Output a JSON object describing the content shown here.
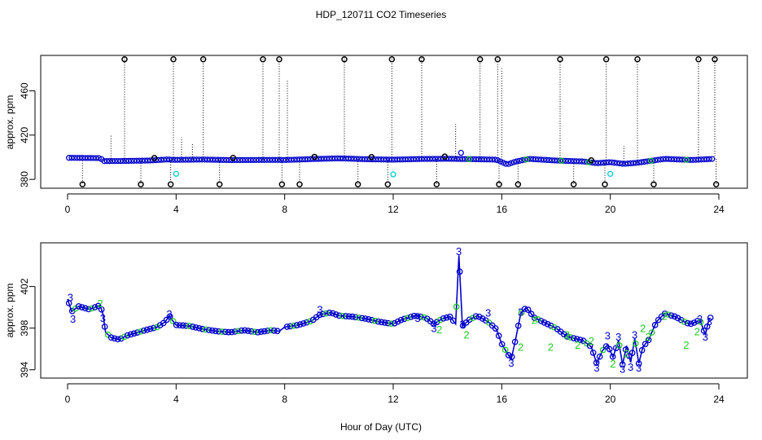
{
  "chart_data": {
    "title": "HDP_120711  CO2 Timeseries",
    "xlabel": "Hour of Day (UTC)",
    "colors": {
      "series_3": "#0000cc",
      "series_2": "#22cc22",
      "outlier": "#000000",
      "outlier_cyan": "#00cccc"
    },
    "panels": [
      {
        "type": "scatter",
        "ylabel": "approx. ppm",
        "xlim": [
          0,
          24
        ],
        "ylim": [
          372,
          492
        ],
        "xticks": [
          "0",
          "4",
          "8",
          "12",
          "16",
          "20",
          "24"
        ],
        "yticks": [
          "380",
          "420",
          "460"
        ],
        "baseline": [
          [
            0,
            399.5
          ],
          [
            1.2,
            399.2
          ],
          [
            1.35,
            396.5
          ],
          [
            2,
            396.6
          ],
          [
            3,
            397
          ],
          [
            3.7,
            398
          ],
          [
            3.9,
            397.6
          ],
          [
            5,
            397.9
          ],
          [
            6,
            397.4
          ],
          [
            7.7,
            397.6
          ],
          [
            8,
            397.5
          ],
          [
            9,
            398.3
          ],
          [
            10,
            399
          ],
          [
            11,
            398.2
          ],
          [
            12,
            397.8
          ],
          [
            13,
            398.4
          ],
          [
            14,
            398.6
          ],
          [
            15,
            398.2
          ],
          [
            15.8,
            397.8
          ],
          [
            16.2,
            393.5
          ],
          [
            16.5,
            396
          ],
          [
            17,
            398.5
          ],
          [
            18,
            397
          ],
          [
            19,
            396.2
          ],
          [
            19.5,
            394.6
          ],
          [
            20,
            395.5
          ],
          [
            20.5,
            394
          ],
          [
            21,
            395
          ],
          [
            22,
            398.5
          ],
          [
            23,
            397.5
          ],
          [
            23.8,
            398.5
          ]
        ],
        "outliers_high": [
          2.1,
          3.9,
          5.0,
          7.2,
          7.8,
          10.2,
          11.95,
          13.05,
          15.2,
          15.85,
          18.15,
          19.85,
          21.0,
          23.25,
          23.85
        ],
        "outliers_low": [
          0.55,
          2.7,
          3.8,
          5.6,
          7.9,
          8.55,
          10.7,
          11.8,
          13.6,
          15.9,
          16.6,
          18.65,
          19.8,
          21.6,
          23.9
        ],
        "outliers_mid": [
          3.2,
          6.1,
          9.1,
          11.2,
          13.9,
          19.3
        ],
        "spike_points": [
          [
            14.5,
            404
          ]
        ],
        "cyan_points": [
          [
            4.0,
            385
          ],
          [
            12.0,
            384.5
          ],
          [
            20.0,
            385
          ]
        ],
        "dotted_spikes": [
          [
            1.6,
            420
          ],
          [
            2.1,
            490
          ],
          [
            3.9,
            490
          ],
          [
            4.2,
            418
          ],
          [
            4.6,
            412
          ],
          [
            5.0,
            490
          ],
          [
            7.2,
            490
          ],
          [
            7.8,
            490
          ],
          [
            8.1,
            470
          ],
          [
            10.2,
            490
          ],
          [
            11.95,
            490
          ],
          [
            13.05,
            490
          ],
          [
            14.3,
            430
          ],
          [
            15.2,
            490
          ],
          [
            15.85,
            490
          ],
          [
            16.0,
            480
          ],
          [
            18.15,
            490
          ],
          [
            19.85,
            490
          ],
          [
            20.5,
            410
          ],
          [
            21.0,
            490
          ],
          [
            23.25,
            490
          ],
          [
            23.85,
            490
          ]
        ]
      },
      {
        "type": "line",
        "ylabel": "approx. ppm",
        "xlim": [
          0,
          24
        ],
        "ylim": [
          393.2,
          406.2
        ],
        "xticks": [
          "0",
          "4",
          "8",
          "12",
          "16",
          "20",
          "24"
        ],
        "yticks": [
          "394",
          "398",
          "402"
        ],
        "marker_label_3": "3",
        "marker_label_2": "2",
        "series": [
          [
            0,
            400.8
          ],
          [
            0.15,
            399.6
          ],
          [
            0.4,
            400.1
          ],
          [
            0.8,
            399.8
          ],
          [
            1.2,
            400.2
          ],
          [
            1.3,
            399.4
          ],
          [
            1.4,
            397.6
          ],
          [
            1.6,
            397.1
          ],
          [
            1.9,
            396.9
          ],
          [
            2.2,
            397.3
          ],
          [
            2.6,
            397.6
          ],
          [
            3.0,
            397.9
          ],
          [
            3.3,
            398.1
          ],
          [
            3.6,
            398.6
          ],
          [
            3.75,
            399.2
          ],
          [
            3.85,
            398.8
          ],
          [
            4.0,
            398.3
          ],
          [
            4.5,
            398.2
          ],
          [
            5.0,
            397.9
          ],
          [
            5.5,
            397.7
          ],
          [
            6.0,
            397.6
          ],
          [
            6.5,
            397.8
          ],
          [
            7.0,
            397.6
          ],
          [
            7.5,
            397.8
          ],
          [
            7.8,
            397.7
          ],
          [
            8.0,
            398.1
          ],
          [
            8.5,
            398.3
          ],
          [
            9.0,
            398.7
          ],
          [
            9.3,
            399.3
          ],
          [
            9.7,
            399.5
          ],
          [
            10.0,
            399.2
          ],
          [
            10.5,
            399.1
          ],
          [
            11.0,
            398.9
          ],
          [
            11.5,
            398.6
          ],
          [
            12.0,
            398.4
          ],
          [
            12.3,
            398.8
          ],
          [
            12.8,
            399.2
          ],
          [
            13.2,
            399.0
          ],
          [
            13.5,
            398.4
          ],
          [
            13.8,
            398.9
          ],
          [
            14.1,
            399.1
          ],
          [
            14.3,
            398.4
          ],
          [
            14.42,
            405.0
          ],
          [
            14.55,
            398.2
          ],
          [
            14.8,
            398.8
          ],
          [
            15.1,
            399.2
          ],
          [
            15.5,
            398.6
          ],
          [
            15.8,
            397.9
          ],
          [
            16.0,
            396.5
          ],
          [
            16.2,
            395.6
          ],
          [
            16.35,
            395.0
          ],
          [
            16.5,
            396.8
          ],
          [
            16.7,
            399.4
          ],
          [
            16.9,
            400.0
          ],
          [
            17.2,
            399.0
          ],
          [
            17.6,
            398.5
          ],
          [
            18.0,
            398.0
          ],
          [
            18.4,
            397.2
          ],
          [
            18.7,
            397.0
          ],
          [
            19.0,
            396.8
          ],
          [
            19.3,
            396.2
          ],
          [
            19.5,
            394.6
          ],
          [
            19.7,
            395.8
          ],
          [
            19.9,
            396.4
          ],
          [
            20.1,
            395.2
          ],
          [
            20.3,
            396.8
          ],
          [
            20.45,
            394.5
          ],
          [
            20.6,
            396.3
          ],
          [
            20.75,
            394.7
          ],
          [
            20.9,
            397.0
          ],
          [
            21.05,
            394.6
          ],
          [
            21.2,
            396.2
          ],
          [
            21.4,
            396.8
          ],
          [
            21.7,
            398.6
          ],
          [
            22.0,
            399.4
          ],
          [
            22.4,
            399.1
          ],
          [
            22.8,
            398.5
          ],
          [
            23.0,
            398.4
          ],
          [
            23.3,
            398.8
          ],
          [
            23.5,
            397.4
          ],
          [
            23.65,
            399.0
          ]
        ]
      }
    ]
  }
}
